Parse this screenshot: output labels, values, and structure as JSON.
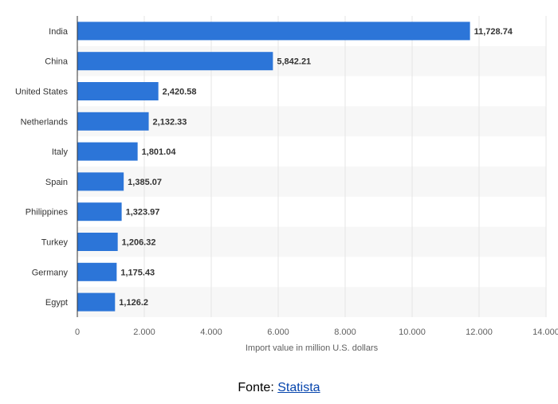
{
  "chart_data": {
    "type": "bar",
    "orientation": "horizontal",
    "categories": [
      "India",
      "China",
      "United States",
      "Netherlands",
      "Italy",
      "Spain",
      "Philippines",
      "Turkey",
      "Germany",
      "Egypt"
    ],
    "values": [
      11728.74,
      5842.21,
      2420.58,
      2132.33,
      1801.04,
      1385.07,
      1323.97,
      1206.32,
      1175.43,
      1126.2
    ],
    "value_labels": [
      "11,728.74",
      "5,842.21",
      "2,420.58",
      "2,132.33",
      "1,801.04",
      "1,385.07",
      "1,323.97",
      "1,206.32",
      "1,175.43",
      "1,126.2"
    ],
    "xlabel": "Import value in million U.S. dollars",
    "ylabel": "",
    "xlim": [
      0,
      14000
    ],
    "xticks": [
      0,
      2000,
      4000,
      6000,
      8000,
      10000,
      12000,
      14000
    ],
    "xtick_labels": [
      "0",
      "2.000",
      "4.000",
      "6.000",
      "8.000",
      "10.000",
      "12.000",
      "14.000"
    ],
    "grid": "vertical",
    "legend": "none"
  },
  "colors": {
    "bar": "#2c75d8",
    "band": "#f7f7f7",
    "grid": "#e6e6e6",
    "axis": "#333333",
    "tick_text": "#606060",
    "label_text": "#333333",
    "value_text": "#333333"
  },
  "source": {
    "prefix": "Fonte: ",
    "link_text": "Statista"
  }
}
